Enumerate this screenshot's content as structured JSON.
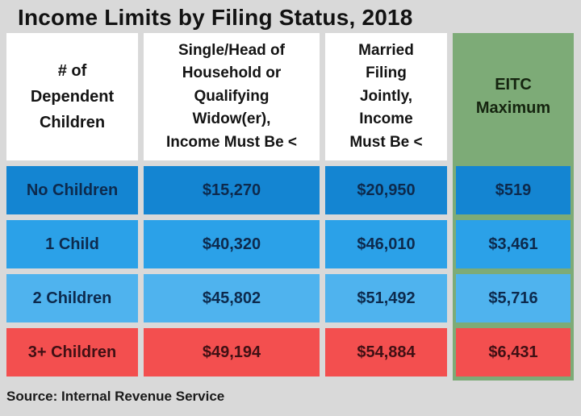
{
  "title": "Income Limits by Filing Status, 2018",
  "source": "Source: Internal Revenue Service",
  "colors": {
    "page_bg": "#d9d9d9",
    "header_bg": "#ffffff",
    "eitc_green": "#7dab77",
    "row_no_children": "#1485d2",
    "row_1_child": "#2ba1e8",
    "row_2_children": "#4fb3ee",
    "row_3plus_children": "#f34f4f",
    "blue_row_text": "#0d2a4d",
    "red_row_text": "#401014"
  },
  "table": {
    "headers": [
      "# of\nDependent\nChildren",
      "Single/Head of\nHousehold or\nQualifying\nWidow(er),\nIncome Must Be <",
      "Married\nFiling\nJointly,\nIncome\nMust Be <",
      "EITC\nMaximum"
    ],
    "rows": [
      {
        "label": "No Children",
        "single_hoh": "$15,270",
        "married_joint": "$20,950",
        "eitc_max": "$519"
      },
      {
        "label": "1 Child",
        "single_hoh": "$40,320",
        "married_joint": "$46,010",
        "eitc_max": "$3,461"
      },
      {
        "label": "2 Children",
        "single_hoh": "$45,802",
        "married_joint": "$51,492",
        "eitc_max": "$5,716"
      },
      {
        "label": "3+ Children",
        "single_hoh": "$49,194",
        "married_joint": "$54,884",
        "eitc_max": "$6,431"
      }
    ]
  },
  "chart_data": {
    "type": "table",
    "title": "Income Limits by Filing Status, 2018",
    "columns": [
      "# of Dependent Children",
      "Single/Head of Household or Qualifying Widow(er), Income Must Be <",
      "Married Filing Jointly, Income Must Be <",
      "EITC Maximum"
    ],
    "rows": [
      [
        "No Children",
        15270,
        20950,
        519
      ],
      [
        "1 Child",
        40320,
        46010,
        3461
      ],
      [
        "2 Children",
        45802,
        51492,
        5716
      ],
      [
        "3+ Children",
        49194,
        54884,
        6431
      ]
    ],
    "units": "USD",
    "source": "Internal Revenue Service"
  }
}
